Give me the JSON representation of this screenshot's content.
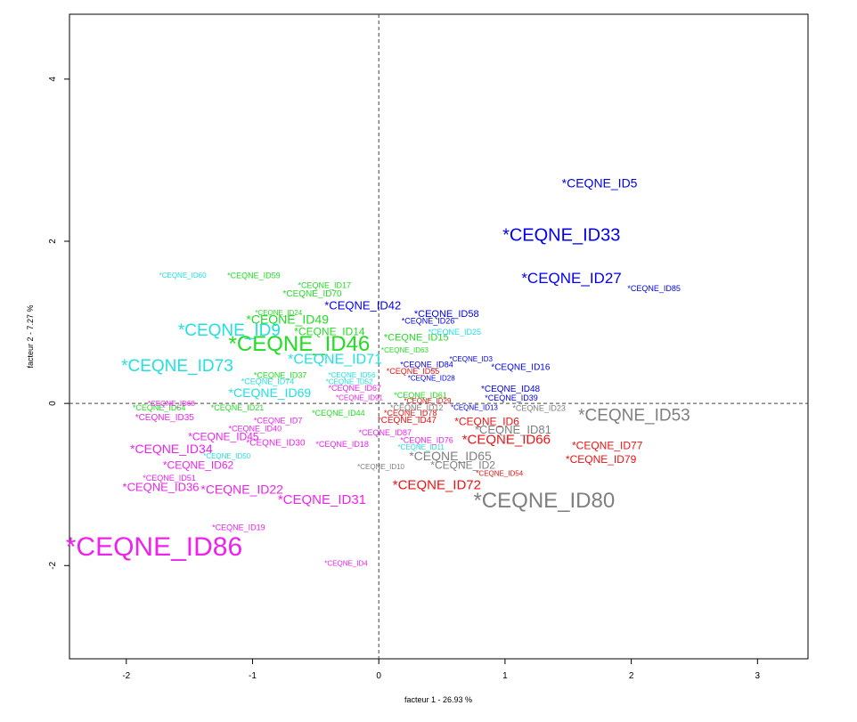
{
  "chart_data": {
    "type": "scatter",
    "xlabel": "facteur  1 - 26.93 %",
    "ylabel": "facteur  2 - 7.27 %",
    "xlim": [
      -2.45,
      3.4
    ],
    "ylim": [
      -3.15,
      4.8
    ],
    "x_ticks": [
      -2,
      -1,
      0,
      1,
      2,
      3
    ],
    "y_ticks": [
      -2,
      0,
      2,
      4
    ],
    "reference_lines": {
      "x": 0,
      "y": 0
    },
    "colors": {
      "blue": "#0000ee",
      "green": "#22dd22",
      "cyan": "#22e0e0",
      "magenta": "#ee22ee",
      "red": "#ee1111",
      "gray": "#7f7f7f"
    },
    "points": [
      {
        "label": "*CEQNE_ID5",
        "x": 1.45,
        "y": 2.72,
        "color": "blue",
        "size": 14
      },
      {
        "label": "*CEQNE_ID33",
        "x": 0.98,
        "y": 2.08,
        "color": "blue",
        "size": 20
      },
      {
        "label": "*CEQNE_ID27",
        "x": 1.13,
        "y": 1.55,
        "color": "blue",
        "size": 17
      },
      {
        "label": "*CEQNE_ID85",
        "x": 1.97,
        "y": 1.42,
        "color": "blue",
        "size": 9
      },
      {
        "label": "*CEQNE_ID42",
        "x": -0.43,
        "y": 1.21,
        "color": "blue",
        "size": 13
      },
      {
        "label": "*CEQNE_ID58",
        "x": 0.28,
        "y": 1.11,
        "color": "blue",
        "size": 11
      },
      {
        "label": "*CEQNE_ID26",
        "x": 0.18,
        "y": 1.02,
        "color": "blue",
        "size": 9
      },
      {
        "label": "*CEQNE_ID3",
        "x": 0.56,
        "y": 0.55,
        "color": "blue",
        "size": 8
      },
      {
        "label": "*CEQNE_ID84",
        "x": 0.17,
        "y": 0.48,
        "color": "blue",
        "size": 9
      },
      {
        "label": "*CEQNE_ID16",
        "x": 0.89,
        "y": 0.45,
        "color": "blue",
        "size": 10
      },
      {
        "label": "*CEQNE_ID28",
        "x": 0.23,
        "y": 0.31,
        "color": "blue",
        "size": 8
      },
      {
        "label": "*CEQNE_ID48",
        "x": 0.81,
        "y": 0.18,
        "color": "blue",
        "size": 10
      },
      {
        "label": "*CEQNE_ID39",
        "x": 0.84,
        "y": 0.07,
        "color": "blue",
        "size": 9
      },
      {
        "label": "*CEQNE_ID13",
        "x": 0.57,
        "y": -0.05,
        "color": "blue",
        "size": 8
      },
      {
        "label": "*CEQNE_ID59",
        "x": -1.2,
        "y": 1.58,
        "color": "green",
        "size": 9
      },
      {
        "label": "*CEQNE_ID17",
        "x": -0.64,
        "y": 1.46,
        "color": "green",
        "size": 9
      },
      {
        "label": "*CEQNE_ID70",
        "x": -0.76,
        "y": 1.36,
        "color": "green",
        "size": 10
      },
      {
        "label": "*CEQNE_ID24",
        "x": -0.98,
        "y": 1.12,
        "color": "green",
        "size": 8
      },
      {
        "label": "*CEQNE_ID49",
        "x": -1.05,
        "y": 1.04,
        "color": "green",
        "size": 14
      },
      {
        "label": "*CEQNE_ID14",
        "x": -0.67,
        "y": 0.89,
        "color": "green",
        "size": 12
      },
      {
        "label": "*CEQNE_ID15",
        "x": 0.04,
        "y": 0.82,
        "color": "green",
        "size": 11
      },
      {
        "label": "*CEQNE_ID46",
        "x": -1.19,
        "y": 0.74,
        "color": "green",
        "size": 24
      },
      {
        "label": "*CEQNE_ID63",
        "x": 0.02,
        "y": 0.66,
        "color": "green",
        "size": 8
      },
      {
        "label": "*CEQNE_ID37",
        "x": -0.99,
        "y": 0.35,
        "color": "green",
        "size": 9
      },
      {
        "label": "*CEQNE_ID61",
        "x": 0.12,
        "y": 0.1,
        "color": "green",
        "size": 9
      },
      {
        "label": "*CEQNE_ID64",
        "x": -1.95,
        "y": -0.05,
        "color": "green",
        "size": 9
      },
      {
        "label": "*CEQNE_ID21",
        "x": -1.33,
        "y": -0.05,
        "color": "green",
        "size": 9
      },
      {
        "label": "*CEQNE_ID44",
        "x": -0.53,
        "y": -0.12,
        "color": "green",
        "size": 9
      },
      {
        "label": "*CEQNE_ID60",
        "x": -1.74,
        "y": 1.58,
        "color": "cyan",
        "size": 8
      },
      {
        "label": "*CEQNE_ID25",
        "x": 0.39,
        "y": 0.88,
        "color": "cyan",
        "size": 9
      },
      {
        "label": "*CEQNE_ID9",
        "x": -1.59,
        "y": 0.91,
        "color": "cyan",
        "size": 19
      },
      {
        "label": "*CEQNE_ID71",
        "x": -0.72,
        "y": 0.55,
        "color": "cyan",
        "size": 16
      },
      {
        "label": "*CEQNE_ID73",
        "x": -2.04,
        "y": 0.47,
        "color": "cyan",
        "size": 19
      },
      {
        "label": "*CEQNE_ID56",
        "x": -0.4,
        "y": 0.35,
        "color": "cyan",
        "size": 8
      },
      {
        "label": "*CEQNE_ID74",
        "x": -1.09,
        "y": 0.27,
        "color": "cyan",
        "size": 9
      },
      {
        "label": "*CEQNE_ID52",
        "x": -0.42,
        "y": 0.27,
        "color": "cyan",
        "size": 8
      },
      {
        "label": "*CEQNE_ID69",
        "x": -1.19,
        "y": 0.13,
        "color": "cyan",
        "size": 14
      },
      {
        "label": "*CEQNE_ID50",
        "x": -1.39,
        "y": -0.65,
        "color": "cyan",
        "size": 8
      },
      {
        "label": "*CEQNE_ID11",
        "x": 0.15,
        "y": -0.54,
        "color": "cyan",
        "size": 8
      },
      {
        "label": "*CEQNE_ID67",
        "x": -0.4,
        "y": 0.19,
        "color": "magenta",
        "size": 9
      },
      {
        "label": "*CEQNE_ID91",
        "x": -0.34,
        "y": 0.07,
        "color": "magenta",
        "size": 8
      },
      {
        "label": "*CEQNE_ID68",
        "x": -1.83,
        "y": 0.0,
        "color": "magenta",
        "size": 8
      },
      {
        "label": "*CEQNE_ID35",
        "x": -1.93,
        "y": -0.17,
        "color": "magenta",
        "size": 10
      },
      {
        "label": "*CEQNE_ID7",
        "x": -0.99,
        "y": -0.21,
        "color": "magenta",
        "size": 9
      },
      {
        "label": "*CEQNE_ID40",
        "x": -1.19,
        "y": -0.31,
        "color": "magenta",
        "size": 9
      },
      {
        "label": "*CEQNE_ID87",
        "x": -0.16,
        "y": -0.36,
        "color": "magenta",
        "size": 9
      },
      {
        "label": "*CEQNE_ID45",
        "x": -1.51,
        "y": -0.41,
        "color": "magenta",
        "size": 12
      },
      {
        "label": "*CEQNE_ID30",
        "x": -1.05,
        "y": -0.48,
        "color": "magenta",
        "size": 10
      },
      {
        "label": "*CEQNE_ID18",
        "x": -0.5,
        "y": -0.5,
        "color": "magenta",
        "size": 9
      },
      {
        "label": "*CEQNE_ID76",
        "x": 0.17,
        "y": -0.45,
        "color": "magenta",
        "size": 9
      },
      {
        "label": "*CEQNE_ID34",
        "x": -1.97,
        "y": -0.56,
        "color": "magenta",
        "size": 14
      },
      {
        "label": "*CEQNE_ID62",
        "x": -1.71,
        "y": -0.76,
        "color": "magenta",
        "size": 12
      },
      {
        "label": "*CEQNE_ID51",
        "x": -1.87,
        "y": -0.92,
        "color": "magenta",
        "size": 9
      },
      {
        "label": "*CEQNE_ID36",
        "x": -2.03,
        "y": -1.03,
        "color": "magenta",
        "size": 13
      },
      {
        "label": "*CEQNE_ID22",
        "x": -1.41,
        "y": -1.06,
        "color": "magenta",
        "size": 14
      },
      {
        "label": "*CEQNE_ID31",
        "x": -0.8,
        "y": -1.18,
        "color": "magenta",
        "size": 15
      },
      {
        "label": "*CEQNE_ID19",
        "x": -1.32,
        "y": -1.53,
        "color": "magenta",
        "size": 9
      },
      {
        "label": "*CEQNE_ID86",
        "x": -2.48,
        "y": -1.76,
        "color": "magenta",
        "size": 30
      },
      {
        "label": "*CEQNE_ID4",
        "x": -0.43,
        "y": -1.97,
        "color": "magenta",
        "size": 8
      },
      {
        "label": "*CEQNE_ID55",
        "x": 0.06,
        "y": 0.4,
        "color": "red",
        "size": 9
      },
      {
        "label": "*CEQNE_ID29",
        "x": 0.2,
        "y": 0.03,
        "color": "red",
        "size": 8
      },
      {
        "label": "*CEQNE_ID78",
        "x": 0.04,
        "y": -0.12,
        "color": "red",
        "size": 9
      },
      {
        "label": "*CEQNE_ID47",
        "x": -0.01,
        "y": -0.2,
        "color": "red",
        "size": 10
      },
      {
        "label": "*CEQNE_ID6",
        "x": 0.6,
        "y": -0.22,
        "color": "red",
        "size": 12
      },
      {
        "label": "*CEQNE_ID66",
        "x": 0.66,
        "y": -0.44,
        "color": "red",
        "size": 15
      },
      {
        "label": "*CEQNE_ID77",
        "x": 1.53,
        "y": -0.52,
        "color": "red",
        "size": 12
      },
      {
        "label": "*CEQNE_ID79",
        "x": 1.48,
        "y": -0.69,
        "color": "red",
        "size": 12
      },
      {
        "label": "*CEQNE_ID54",
        "x": 0.77,
        "y": -0.86,
        "color": "red",
        "size": 8
      },
      {
        "label": "*CEQNE_ID72",
        "x": 0.11,
        "y": -1.0,
        "color": "red",
        "size": 15
      },
      {
        "label": "*CEQNE_ID12",
        "x": 0.09,
        "y": -0.05,
        "color": "gray",
        "size": 9
      },
      {
        "label": "*CEQNE_ID23",
        "x": 1.06,
        "y": -0.06,
        "color": "gray",
        "size": 9
      },
      {
        "label": "*CEQNE_ID53",
        "x": 1.58,
        "y": -0.14,
        "color": "gray",
        "size": 19
      },
      {
        "label": "*CEQNE_ID81",
        "x": 0.76,
        "y": -0.32,
        "color": "gray",
        "size": 13
      },
      {
        "label": "*CEQNE_ID65",
        "x": 0.24,
        "y": -0.65,
        "color": "gray",
        "size": 14
      },
      {
        "label": "*CEQNE_ID2",
        "x": 0.41,
        "y": -0.76,
        "color": "gray",
        "size": 12
      },
      {
        "label": "*CEQNE_ID10",
        "x": -0.17,
        "y": -0.78,
        "color": "gray",
        "size": 8
      },
      {
        "label": "*CEQNE_ID80",
        "x": 0.75,
        "y": -1.19,
        "color": "gray",
        "size": 24
      }
    ]
  }
}
